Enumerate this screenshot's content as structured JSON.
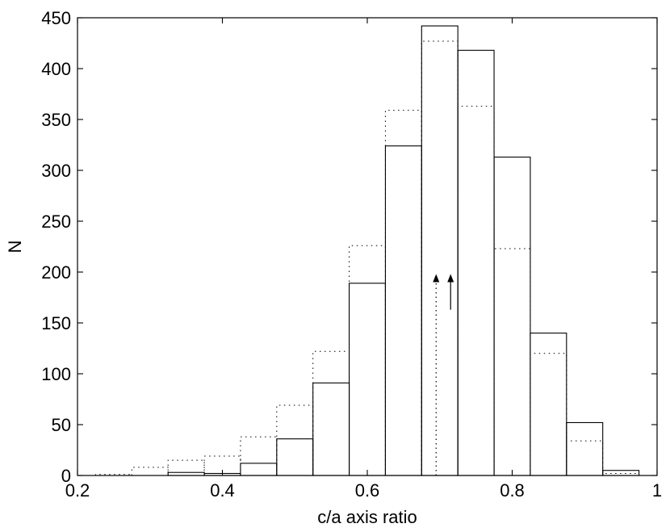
{
  "chart_data": {
    "type": "bar",
    "title": "",
    "xlabel": "c/a axis ratio",
    "ylabel": "N",
    "xlim": [
      0.2,
      1.0
    ],
    "ylim": [
      0,
      450
    ],
    "xticks": [
      0.2,
      0.4,
      0.6,
      0.8,
      1.0
    ],
    "xtick_labels": [
      "0.2",
      "0.4",
      "0.6",
      "0.8",
      "1"
    ],
    "yticks": [
      0,
      50,
      100,
      150,
      200,
      250,
      300,
      350,
      400,
      450
    ],
    "ytick_labels": [
      "0",
      "50",
      "100",
      "150",
      "200",
      "250",
      "300",
      "350",
      "400",
      "450"
    ],
    "bin_width": 0.05,
    "bin_centers": [
      0.25,
      0.3,
      0.35,
      0.4,
      0.45,
      0.5,
      0.55,
      0.6,
      0.65,
      0.7,
      0.75,
      0.8,
      0.85,
      0.9,
      0.95
    ],
    "series": [
      {
        "style": "solid",
        "values": [
          0,
          0,
          3,
          2,
          12,
          36,
          91,
          189,
          324,
          442,
          418,
          313,
          140,
          52,
          5
        ]
      },
      {
        "style": "dotted",
        "values": [
          1,
          8,
          15,
          19,
          38,
          69,
          122,
          226,
          359,
          427,
          363,
          223,
          120,
          34,
          2
        ]
      }
    ],
    "markers": [
      {
        "style": "dotted",
        "x": 0.695,
        "y_start": 0,
        "y_end": 198
      },
      {
        "style": "solid",
        "x": 0.715,
        "y_start": 163,
        "y_end": 198
      }
    ],
    "grid": false,
    "legend": "none"
  }
}
